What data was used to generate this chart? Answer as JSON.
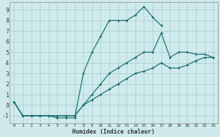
{
  "xlabel": "Humidex (Indice chaleur)",
  "bg_color": "#ceeaea",
  "grid_color": "#aacfcf",
  "line_color": "#1a6e6e",
  "xlim": [
    -0.5,
    23.5
  ],
  "ylim": [
    -1.7,
    9.7
  ],
  "xticks": [
    0,
    1,
    2,
    3,
    4,
    5,
    6,
    7,
    8,
    9,
    10,
    11,
    12,
    13,
    14,
    15,
    16,
    17,
    18,
    19,
    20,
    21,
    22,
    23
  ],
  "yticks": [
    -1,
    0,
    1,
    2,
    3,
    4,
    5,
    6,
    7,
    8,
    9
  ],
  "line1_x": [
    0,
    1,
    2,
    3,
    4,
    5,
    6,
    7,
    8,
    9,
    10,
    11,
    12,
    13,
    14,
    15,
    16,
    17
  ],
  "line1_y": [
    0.3,
    -1,
    -1,
    -1,
    -1,
    -1.2,
    -1.2,
    -1.2,
    3.0,
    5.0,
    6.5,
    8.0,
    8.0,
    8.0,
    8.5,
    9.3,
    8.3,
    7.5
  ],
  "line2_x": [
    0,
    1,
    2,
    3,
    4,
    5,
    6,
    7,
    8,
    9,
    10,
    11,
    12,
    13,
    14,
    15,
    16,
    17,
    18,
    19,
    20,
    21,
    22,
    23
  ],
  "line2_y": [
    0.3,
    -1,
    -1,
    -1,
    -1,
    -1,
    -1,
    -1,
    0.0,
    1.0,
    2.0,
    3.0,
    3.5,
    4.0,
    4.5,
    5.0,
    5.0,
    6.8,
    4.5,
    5.0,
    5.0,
    4.8,
    4.8,
    4.5
  ],
  "line3_x": [
    0,
    1,
    2,
    3,
    4,
    5,
    6,
    7,
    8,
    9,
    10,
    11,
    12,
    13,
    14,
    15,
    16,
    17,
    18,
    19,
    20,
    21,
    22,
    23
  ],
  "line3_y": [
    0.3,
    -1,
    -1,
    -1,
    -1,
    -1,
    -1,
    -1,
    0.0,
    0.5,
    1.0,
    1.5,
    2.0,
    2.5,
    3.0,
    3.2,
    3.5,
    4.0,
    3.5,
    3.5,
    3.8,
    4.2,
    4.5,
    4.5
  ]
}
